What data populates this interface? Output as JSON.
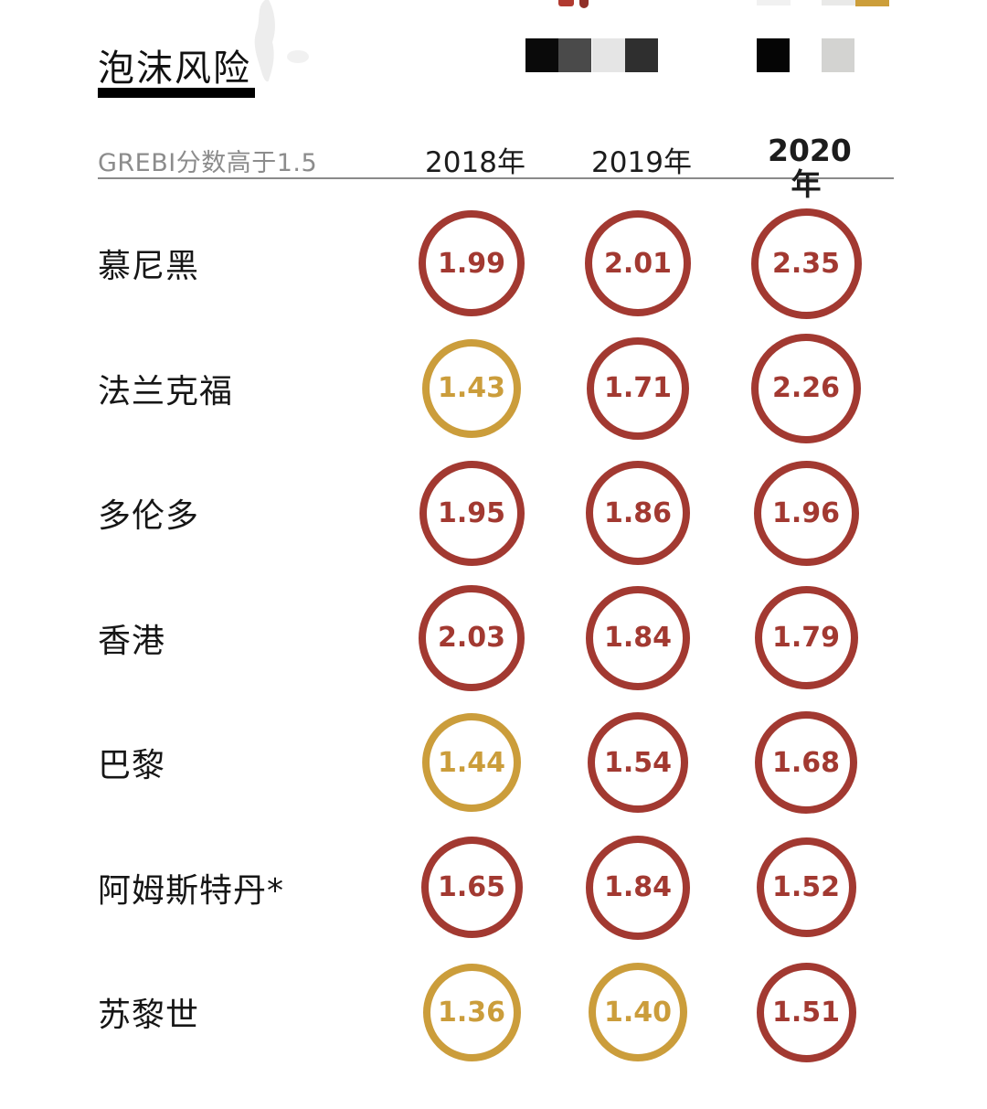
{
  "page": {
    "title": "泡沫风险",
    "subtitle": "GREBI分数高于1.5"
  },
  "chart_data": {
    "type": "table",
    "title": "泡沫风险",
    "note": "GREBI分数高于1.5",
    "columns": [
      "2018年",
      "2019年",
      "2020年"
    ],
    "threshold": 1.5,
    "colors": {
      "high_risk": "#a23931",
      "moderate_risk": "#cb9d3b"
    },
    "rows": [
      {
        "city": "慕尼黑",
        "values": [
          "1.99",
          "2.01",
          "2.35"
        ]
      },
      {
        "city": "法兰克福",
        "values": [
          "1.43",
          "1.71",
          "2.26"
        ]
      },
      {
        "city": "多伦多",
        "values": [
          "1.95",
          "1.86",
          "1.96"
        ]
      },
      {
        "city": "香港",
        "values": [
          "2.03",
          "1.84",
          "1.79"
        ]
      },
      {
        "city": "巴黎",
        "values": [
          "1.44",
          "1.54",
          "1.68"
        ]
      },
      {
        "city": "阿姆斯特丹*",
        "values": [
          "1.65",
          "1.84",
          "1.52"
        ]
      },
      {
        "city": "苏黎世",
        "values": [
          "1.36",
          "1.40",
          "1.51"
        ]
      }
    ]
  },
  "decorations": {
    "squares": [
      "#0a0a0a",
      "#4a4a4a",
      "#e5e5e5",
      "#2f2f2f",
      "#050505",
      "#d3d3d1"
    ],
    "top_strips": [
      "#f1f1f1",
      "#e9e9e8",
      "#cc9e3a"
    ]
  }
}
